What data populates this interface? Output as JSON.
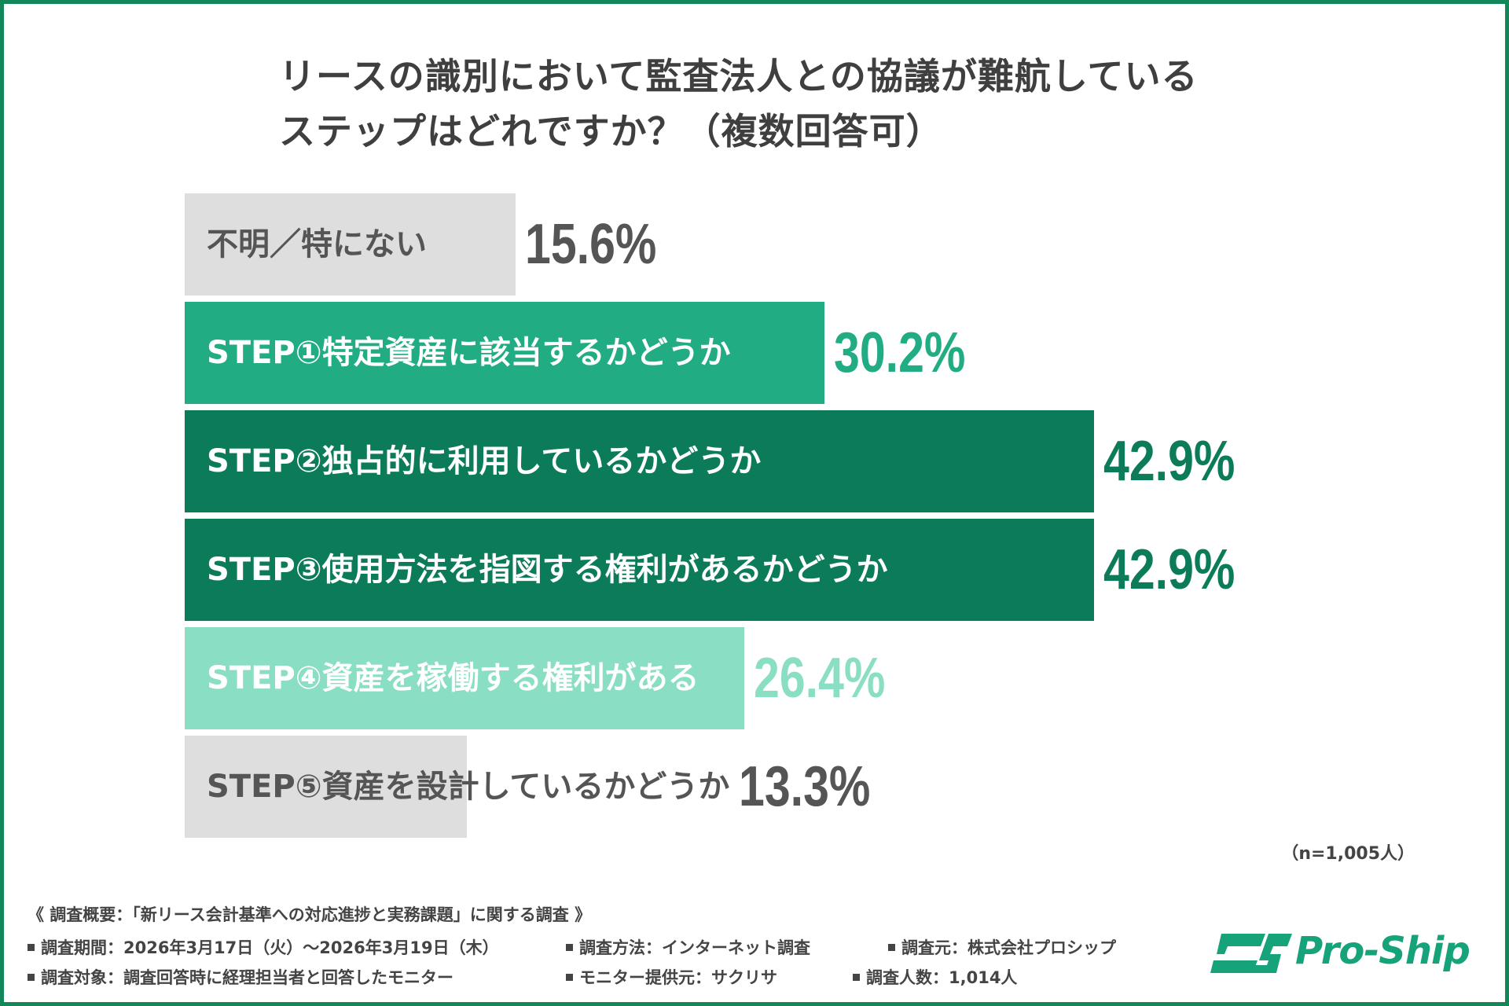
{
  "title_lines": [
    "リースの識別において監査法人との協議が難航している",
    "ステップはどれですか？（複数回答可）"
  ],
  "chart_data": {
    "type": "bar",
    "orientation": "horizontal",
    "categories": [
      "不明／特にない",
      "STEP①特定資産に該当するかどうか",
      "STEP②独占的に利用しているかどうか",
      "STEP③使用方法を指図する権利があるかどうか",
      "STEP④資産を稼働する権利がある",
      "STEP⑤資産を設計しているかどうか"
    ],
    "values": [
      15.6,
      30.2,
      42.9,
      42.9,
      26.4,
      13.3
    ],
    "value_labels": [
      "15.6%",
      "30.2%",
      "42.9%",
      "42.9%",
      "26.4%",
      "13.3%"
    ],
    "bar_colors": [
      "#dedede",
      "#22ac84",
      "#0c7b59",
      "#0c7b59",
      "#8adec3",
      "#dedede"
    ],
    "label_colors": [
      "#555555",
      "#ffffff",
      "#ffffff",
      "#ffffff",
      "#ffffff",
      "#555555"
    ],
    "value_colors": [
      "#555555",
      "#22ac84",
      "#0c7b59",
      "#0c7b59",
      "#8adec3",
      "#555555"
    ],
    "grid": false,
    "legend": "none"
  },
  "sample_size": "（n=1,005人）",
  "footer": {
    "survey_heading": "《 調査概要：「新リース会計基準への対応進捗と実務課題」に関する調査 》",
    "period": "調査期間：2026年3月17日（火）～2026年3月19日（木）",
    "method": "調査方法：インターネット調査",
    "organizer": "調査元：株式会社プロシップ",
    "target": "調査対象：調査回答時に経理担当者と回答したモニター",
    "panel": "モニター提供元：サクリサ",
    "respondents": "調査人数：1,014人"
  },
  "logo": {
    "text": "Pro-Ship",
    "color": "#17a37a"
  }
}
